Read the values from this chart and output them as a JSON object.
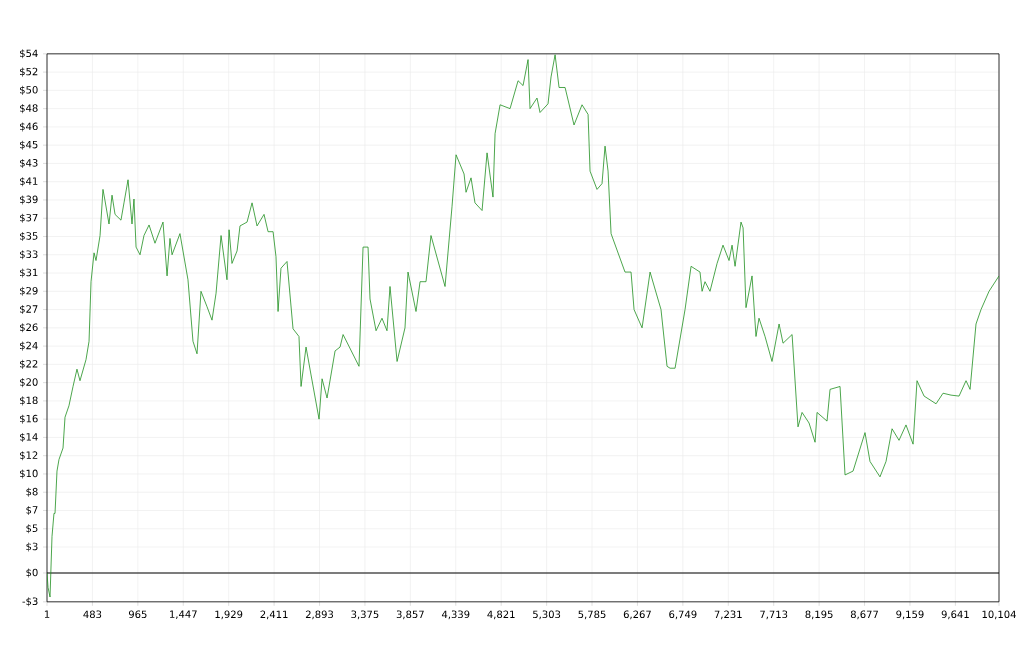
{
  "chart_data": {
    "type": "line",
    "xlim": [
      1,
      10104
    ],
    "ylim": [
      -3,
      54
    ],
    "grid": true,
    "xticks": [
      1,
      483,
      965,
      {
        "value": 1447,
        "label": "1,447"
      },
      {
        "value": 1929,
        "label": "1,929"
      },
      {
        "value": 2411,
        "label": "2,411"
      },
      {
        "value": 2893,
        "label": "2,893"
      },
      {
        "value": 3375,
        "label": "3,375"
      },
      {
        "value": 3857,
        "label": "3,857"
      },
      {
        "value": 4339,
        "label": "4,339"
      },
      {
        "value": 4821,
        "label": "4,821"
      },
      {
        "value": 5303,
        "label": "5,303"
      },
      {
        "value": 5785,
        "label": "5,785"
      },
      {
        "value": 6267,
        "label": "6,267"
      },
      {
        "value": 6749,
        "label": "6,749"
      },
      {
        "value": 7231,
        "label": "7,231"
      },
      {
        "value": 7713,
        "label": "7,713"
      },
      {
        "value": 8195,
        "label": "8,195"
      },
      {
        "value": 8677,
        "label": "8,677"
      },
      {
        "value": 9159,
        "label": "9,159"
      },
      {
        "value": 9641,
        "label": "9,641"
      },
      {
        "value": 10104,
        "label": "10,104"
      }
    ],
    "yticks": [
      {
        "value": -3,
        "label": "-$3"
      },
      {
        "value": 0,
        "label": "$0"
      },
      {
        "value": 2.7,
        "label": "$3"
      },
      {
        "value": 4.6,
        "label": "$5"
      },
      {
        "value": 6.5,
        "label": "$7"
      },
      {
        "value": 8.4,
        "label": "$8"
      },
      {
        "value": 10.3,
        "label": "$10"
      },
      {
        "value": 12.2,
        "label": "$12"
      },
      {
        "value": 14.1,
        "label": "$14"
      },
      {
        "value": 16,
        "label": "$16"
      },
      {
        "value": 17.9,
        "label": "$18"
      },
      {
        "value": 19.8,
        "label": "$20"
      },
      {
        "value": 21.7,
        "label": "$22"
      },
      {
        "value": 23.6,
        "label": "$24"
      },
      {
        "value": 25.5,
        "label": "$26"
      },
      {
        "value": 27.4,
        "label": "$27"
      },
      {
        "value": 29.3,
        "label": "$29"
      },
      {
        "value": 31.2,
        "label": "$31"
      },
      {
        "value": 33.1,
        "label": "$33"
      },
      {
        "value": 35,
        "label": "$35"
      },
      {
        "value": 36.9,
        "label": "$37"
      },
      {
        "value": 38.8,
        "label": "$39"
      },
      {
        "value": 40.7,
        "label": "$41"
      },
      {
        "value": 42.6,
        "label": "$43"
      },
      {
        "value": 44.5,
        "label": "$45"
      },
      {
        "value": 46.4,
        "label": "$46"
      },
      {
        "value": 48.3,
        "label": "$48"
      },
      {
        "value": 50.2,
        "label": "$50"
      },
      {
        "value": 52.1,
        "label": "$52"
      },
      {
        "value": 54,
        "label": "$54"
      }
    ],
    "ref_lines": [
      {
        "axis": "y",
        "value": 0,
        "color": "#000000"
      }
    ],
    "series": [
      {
        "color": "#1f8f1f",
        "x": [
          1,
          12,
          33,
          54,
          75,
          86,
          107,
          128,
          171,
          192,
          234,
          277,
          319,
          351,
          415,
          447,
          468,
          500,
          521,
          564,
          595,
          617,
          659,
          691,
          723,
          786,
          818,
          861,
          903,
          924,
          946,
          988,
          1030,
          1084,
          1147,
          1232,
          1275,
          1306,
          1328,
          1412,
          1497,
          1550,
          1593,
          1635,
          1699,
          1752,
          1795,
          1848,
          1911,
          1933,
          1964,
          2018,
          2049,
          2124,
          2177,
          2230,
          2304,
          2347,
          2400,
          2431,
          2453,
          2484,
          2548,
          2612,
          2675,
          2697,
          2750,
          2803,
          2888,
          2920,
          2973,
          3058,
          3111,
          3143,
          3312,
          3355,
          3408,
          3429,
          3493,
          3556,
          3609,
          3641,
          3716,
          3800,
          3832,
          3917,
          3960,
          4023,
          4076,
          4225,
          4299,
          4342,
          4427,
          4448,
          4501,
          4543,
          4618,
          4671,
          4734,
          4756,
          4809,
          4915,
          5000,
          5053,
          5106,
          5127,
          5201,
          5233,
          5318,
          5350,
          5393,
          5435,
          5499,
          5594,
          5679,
          5743,
          5764,
          5838,
          5891,
          5923,
          5955,
          5987,
          6135,
          6199,
          6231,
          6316,
          6401,
          6517,
          6581,
          6613,
          6666,
          6772,
          6836,
          6931,
          6953,
          6984,
          7037,
          7112,
          7175,
          7239,
          7271,
          7303,
          7366,
          7388,
          7419,
          7483,
          7525,
          7557,
          7621,
          7695,
          7770,
          7812,
          7908,
          7971,
          8014,
          8088,
          8152,
          8173,
          8279,
          8311,
          8417,
          8470,
          8555,
          8682,
          8735,
          8841,
          8905,
          8969,
          9043,
          9117,
          9192,
          9234,
          9309,
          9436,
          9510,
          9595,
          9680,
          9754,
          9797,
          9860,
          9913,
          9998,
          10104
        ],
        "values": [
          0,
          -1.5,
          -2.5,
          3.8,
          6.2,
          6.2,
          10.6,
          11.8,
          13.0,
          16.2,
          17.4,
          19.4,
          21.2,
          20.0,
          22.2,
          24.1,
          30.3,
          33.3,
          32.5,
          35.1,
          39.9,
          38.7,
          36.3,
          39.3,
          37.3,
          36.7,
          38.5,
          40.9,
          36.3,
          38.9,
          33.9,
          33.1,
          35.1,
          36.2,
          34.3,
          36.5,
          30.9,
          34.8,
          33.1,
          35.3,
          30.5,
          24.1,
          22.8,
          29.3,
          27.7,
          26.3,
          29.1,
          35.1,
          30.5,
          35.7,
          32.2,
          33.5,
          36.1,
          36.5,
          38.5,
          36.1,
          37.3,
          35.5,
          35.5,
          32.9,
          27.2,
          31.7,
          32.4,
          25.4,
          24.6,
          19.4,
          23.5,
          20.6,
          16.0,
          20.2,
          18.2,
          23.1,
          23.5,
          24.8,
          21.5,
          33.9,
          33.9,
          28.5,
          25.2,
          26.5,
          25.2,
          29.8,
          22.0,
          25.5,
          31.3,
          27.2,
          30.3,
          30.3,
          35.1,
          29.8,
          38.1,
          43.5,
          41.5,
          39.6,
          41.1,
          38.5,
          37.7,
          43.7,
          39.1,
          45.7,
          48.7,
          48.3,
          51.2,
          50.7,
          53.4,
          48.3,
          49.4,
          47.9,
          48.8,
          51.6,
          53.9,
          50.5,
          50.5,
          46.6,
          48.7,
          47.7,
          41.8,
          39.9,
          40.5,
          44.4,
          41.8,
          35.3,
          31.3,
          31.3,
          27.4,
          25.5,
          31.3,
          27.4,
          21.5,
          21.3,
          21.3,
          27.4,
          31.9,
          31.3,
          29.3,
          30.3,
          29.3,
          32.2,
          34.1,
          32.5,
          34.1,
          31.9,
          36.5,
          35.9,
          27.6,
          30.9,
          24.6,
          26.5,
          24.6,
          22.0,
          25.9,
          23.9,
          24.8,
          15.2,
          16.7,
          15.6,
          13.6,
          16.7,
          15.8,
          19.1,
          19.4,
          10.2,
          10.6,
          14.6,
          11.6,
          10.0,
          11.6,
          15.0,
          13.8,
          15.4,
          13.4,
          20.0,
          18.4,
          17.6,
          18.7,
          18.5,
          18.4,
          20.0,
          19.1,
          25.9,
          27.4,
          29.3,
          30.9
        ]
      }
    ]
  }
}
